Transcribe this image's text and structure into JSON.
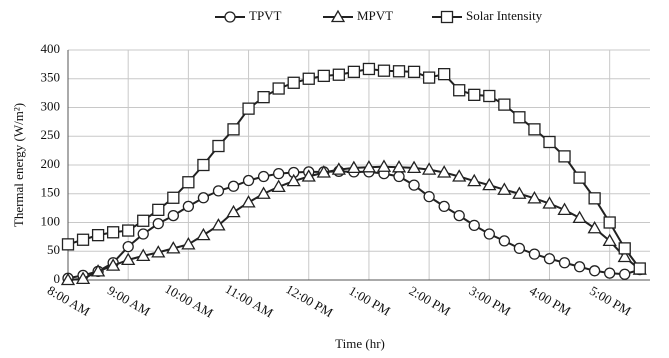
{
  "chart_data": {
    "type": "line",
    "x_label": "Time (hr)",
    "y_label": "Thermal energy (W/m²)",
    "x": [
      8,
      8.25,
      8.5,
      8.75,
      9,
      9.25,
      9.5,
      9.75,
      10,
      10.25,
      10.5,
      10.75,
      11,
      11.25,
      11.5,
      11.75,
      12,
      12.25,
      12.5,
      12.75,
      13,
      13.25,
      13.5,
      13.75,
      14,
      14.25,
      14.5,
      14.75,
      15,
      15.25,
      15.5,
      15.75,
      16,
      16.25,
      16.5,
      16.75,
      17,
      17.25,
      17.5
    ],
    "series": [
      {
        "name": "TPVT",
        "color": "#222222",
        "marker": "circle",
        "values": [
          3,
          8,
          15,
          30,
          58,
          80,
          98,
          112,
          128,
          143,
          155,
          163,
          173,
          180,
          185,
          187,
          188,
          188,
          189,
          188,
          188,
          185,
          180,
          165,
          145,
          128,
          112,
          95,
          80,
          68,
          55,
          45,
          37,
          30,
          23,
          16,
          12,
          10,
          18
        ]
      },
      {
        "name": "MPVT",
        "color": "#222222",
        "marker": "triangle",
        "values": [
          0,
          2,
          15,
          25,
          35,
          42,
          48,
          55,
          62,
          78,
          95,
          118,
          135,
          150,
          162,
          172,
          180,
          187,
          192,
          195,
          196,
          197,
          196,
          195,
          192,
          187,
          180,
          172,
          165,
          157,
          150,
          142,
          133,
          122,
          108,
          90,
          68,
          40,
          18
        ]
      },
      {
        "name": "Solar Intensity",
        "color": "#222222",
        "marker": "square",
        "values": [
          62,
          70,
          78,
          83,
          86,
          103,
          122,
          143,
          170,
          200,
          233,
          262,
          298,
          318,
          333,
          343,
          350,
          355,
          357,
          362,
          367,
          364,
          363,
          362,
          352,
          358,
          330,
          322,
          320,
          305,
          283,
          262,
          240,
          215,
          178,
          142,
          100,
          55,
          20
        ]
      }
    ],
    "xlim": [
      8,
      17.67
    ],
    "xticks": [
      {
        "value": 8,
        "label": "8:00 AM"
      },
      {
        "value": 9,
        "label": "9:00 AM"
      },
      {
        "value": 10,
        "label": "10:00 AM"
      },
      {
        "value": 11,
        "label": "11:00 AM"
      },
      {
        "value": 12,
        "label": "12:00 PM"
      },
      {
        "value": 13,
        "label": "1:00 PM"
      },
      {
        "value": 14,
        "label": "2:00 PM"
      },
      {
        "value": 15,
        "label": "3:00 PM"
      },
      {
        "value": 16,
        "label": "4:00 PM"
      },
      {
        "value": 17,
        "label": "5:00 PM"
      }
    ],
    "ylim": [
      0,
      400
    ],
    "yticks": [
      0,
      50,
      100,
      150,
      200,
      250,
      300,
      350,
      400
    ],
    "grid": true
  }
}
